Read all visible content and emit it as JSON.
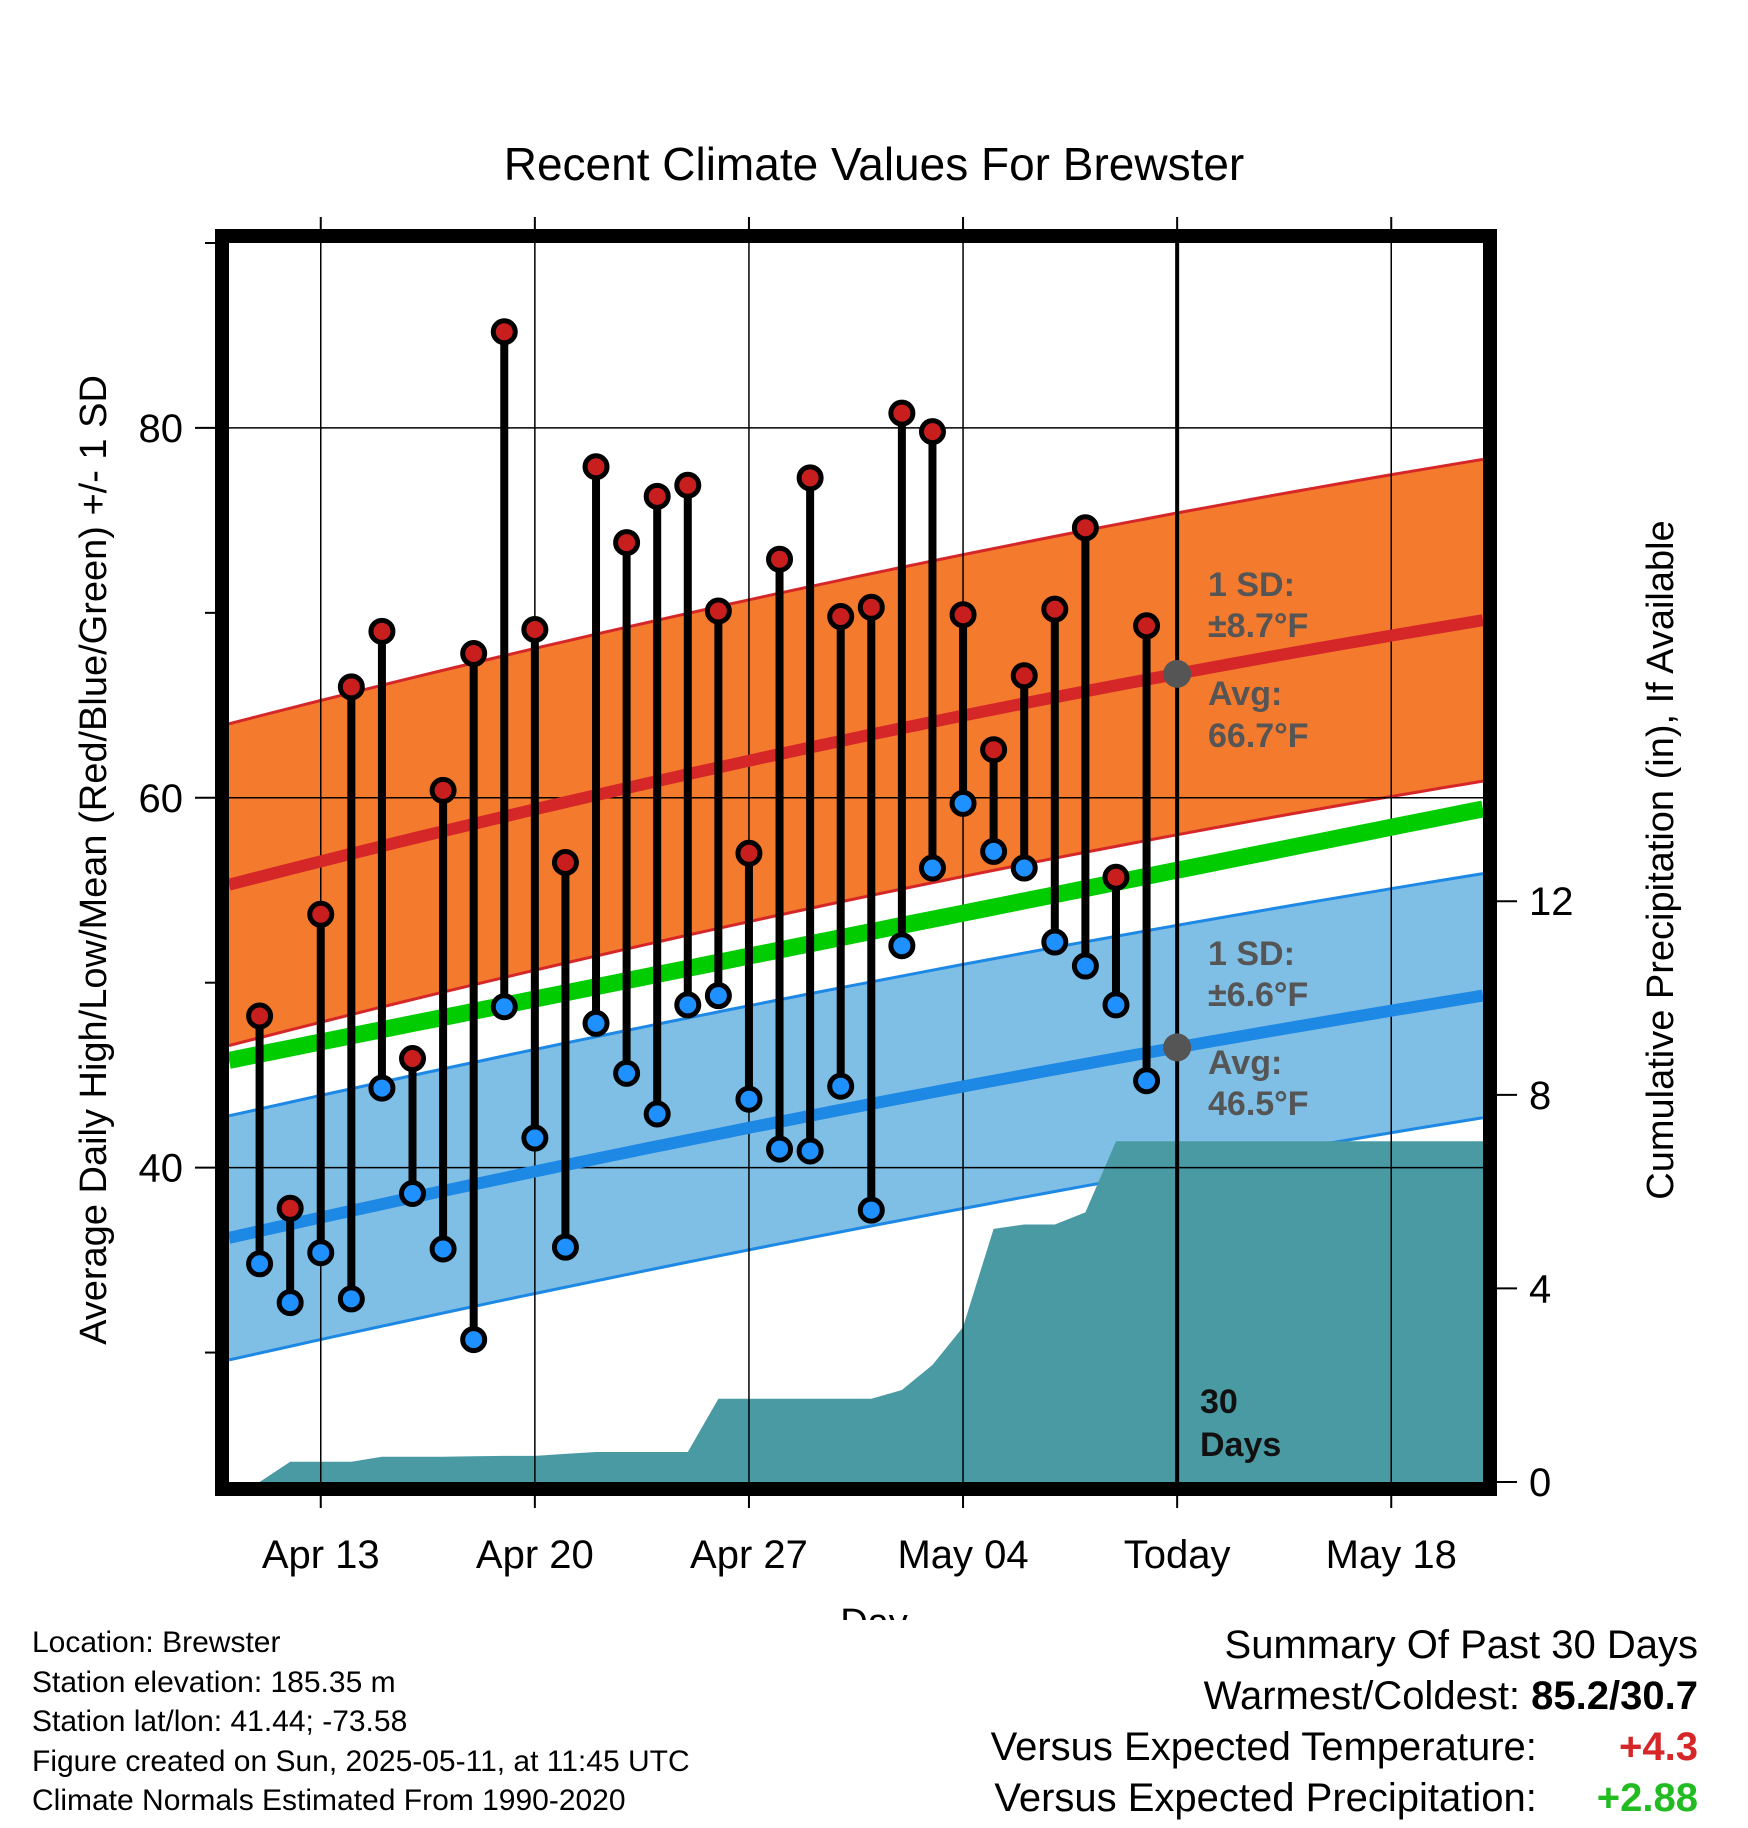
{
  "chart_data": {
    "type": "line",
    "title": "Recent Climate Values For Brewster",
    "xlabel": "Day",
    "ylabel_left": "Average Daily High/Low/Mean (Red/Blue/Green) +/- 1 SD",
    "ylabel_right": "Cumulative Precipitation (in), If Available",
    "x_dates_start": "2025-04-10",
    "x_dates_end": "2025-05-21",
    "today": "2025-05-11",
    "x_ticks": [
      {
        "date": "2025-04-13",
        "label": "Apr 13"
      },
      {
        "date": "2025-04-20",
        "label": "Apr 20"
      },
      {
        "date": "2025-04-27",
        "label": "Apr 27"
      },
      {
        "date": "2025-05-04",
        "label": "May 04"
      },
      {
        "date": "2025-05-11",
        "label": "Today"
      },
      {
        "date": "2025-05-18",
        "label": "May 18"
      }
    ],
    "ylim_left": [
      23,
      90
    ],
    "y_ticks_left": [
      40,
      60,
      80
    ],
    "ylim_right": [
      0,
      25.6
    ],
    "y_ticks_right": [
      0,
      4,
      8,
      12
    ],
    "grid": true,
    "normal_high": {
      "name": "Normal High",
      "color": "#d62728",
      "band_color": "#f47a2e",
      "start": 55.3,
      "today": 66.7,
      "end": 69.6,
      "sd": 8.7
    },
    "normal_low": {
      "name": "Normal Low",
      "color": "#1e88e5",
      "band_color": "#7fbfe6",
      "start": 36.2,
      "today": 46.5,
      "end": 49.3,
      "sd": 6.6
    },
    "normal_mean": {
      "name": "Normal Mean",
      "color": "#00cc00",
      "start": 45.8,
      "end": 59.4
    },
    "daily": {
      "dates": [
        "2025-04-11",
        "2025-04-12",
        "2025-04-13",
        "2025-04-14",
        "2025-04-15",
        "2025-04-16",
        "2025-04-17",
        "2025-04-18",
        "2025-04-19",
        "2025-04-20",
        "2025-04-21",
        "2025-04-22",
        "2025-04-23",
        "2025-04-24",
        "2025-04-25",
        "2025-04-26",
        "2025-04-27",
        "2025-04-28",
        "2025-04-29",
        "2025-04-30",
        "2025-05-01",
        "2025-05-02",
        "2025-05-03",
        "2025-05-04",
        "2025-05-05",
        "2025-05-06",
        "2025-05-07",
        "2025-05-08",
        "2025-05-09",
        "2025-05-10"
      ],
      "high": [
        48.2,
        37.8,
        53.7,
        66.0,
        69.0,
        45.9,
        60.4,
        67.8,
        85.2,
        69.1,
        56.5,
        77.9,
        73.8,
        76.3,
        76.9,
        70.1,
        57.0,
        72.9,
        77.3,
        69.8,
        70.3,
        80.8,
        79.8,
        69.9,
        62.6,
        66.6,
        70.2,
        74.6,
        55.7,
        69.3
      ],
      "low": [
        34.8,
        32.7,
        35.4,
        32.9,
        44.3,
        38.6,
        35.6,
        30.7,
        48.7,
        41.6,
        35.7,
        47.8,
        45.1,
        42.9,
        48.8,
        49.3,
        43.7,
        41.0,
        40.9,
        44.4,
        37.7,
        52.0,
        56.2,
        59.7,
        57.1,
        56.2,
        52.2,
        50.9,
        48.8,
        44.7
      ],
      "high_color": "#c81e1e",
      "low_color": "#1e90ff"
    },
    "precip": {
      "name": "Cumulative Precipitation",
      "color": "#4a9aa4",
      "dates": [
        "2025-04-10",
        "2025-04-11",
        "2025-04-12",
        "2025-04-13",
        "2025-04-14",
        "2025-04-15",
        "2025-04-16",
        "2025-04-17",
        "2025-04-18",
        "2025-04-19",
        "2025-04-20",
        "2025-04-21",
        "2025-04-22",
        "2025-04-23",
        "2025-04-24",
        "2025-04-25",
        "2025-04-26",
        "2025-04-27",
        "2025-04-28",
        "2025-04-29",
        "2025-04-30",
        "2025-05-01",
        "2025-05-02",
        "2025-05-03",
        "2025-05-04",
        "2025-05-05",
        "2025-05-06",
        "2025-05-07",
        "2025-05-08",
        "2025-05-09",
        "2025-05-10",
        "2025-05-21"
      ],
      "values": [
        0.0,
        0.0,
        0.42,
        0.42,
        0.42,
        0.52,
        0.52,
        0.52,
        0.53,
        0.54,
        0.54,
        0.58,
        0.62,
        0.62,
        0.62,
        0.62,
        1.72,
        1.72,
        1.72,
        1.72,
        1.72,
        1.72,
        1.9,
        2.42,
        3.2,
        5.23,
        5.32,
        5.32,
        5.57,
        7.04,
        7.04,
        7.04
      ]
    },
    "annotations": {
      "high_sd_label": "1 SD:",
      "high_sd_value": "±8.7°F",
      "high_avg_label": "Avg:",
      "high_avg_value": "66.7°F",
      "low_sd_label": "1 SD:",
      "low_sd_value": "±6.6°F",
      "low_avg_label": "Avg:",
      "low_avg_value": "46.5°F",
      "period_line1": "30",
      "period_line2": "Days"
    }
  },
  "footer": {
    "location": "Location: Brewster",
    "elevation": "Station elevation: 185.35 m",
    "latlon": "Station lat/lon: 41.44; -73.58",
    "created": "Figure created on Sun, 2025-05-11, at 11:45 UTC",
    "normals": "Climate Normals Estimated From 1990-2020"
  },
  "summary": {
    "heading": "Summary Of Past 30 Days",
    "warm_cold_label": "Warmest/Coldest:",
    "warm_cold_value": "85.2/30.7",
    "temp_label": "Versus Expected Temperature:",
    "temp_value": "+4.3",
    "precip_label": "Versus Expected Precipitation:",
    "precip_value": "+2.88"
  }
}
